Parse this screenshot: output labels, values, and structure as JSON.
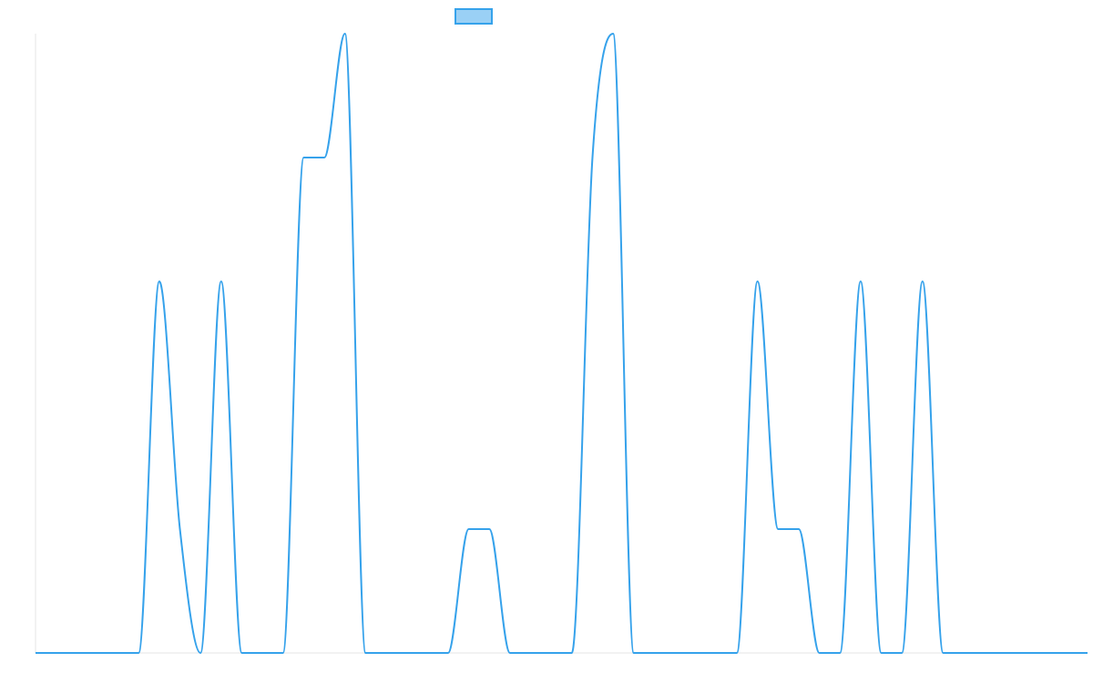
{
  "chart_data": {
    "type": "line",
    "title": "",
    "xlabel": "",
    "ylabel": "",
    "grid": false,
    "legend_position": "top-center",
    "x": [
      0,
      1,
      2,
      3,
      4,
      5,
      6,
      7,
      8,
      9,
      10,
      11,
      12,
      13,
      14,
      15,
      16,
      17,
      18,
      19,
      20,
      21,
      22,
      23,
      24,
      25,
      26,
      27,
      28,
      29,
      30,
      31,
      32,
      33,
      34,
      35,
      36,
      37,
      38,
      39,
      40,
      41,
      42,
      43,
      44,
      45,
      46,
      47,
      48,
      49,
      50,
      51
    ],
    "xlim": [
      0,
      51
    ],
    "ylim": [
      0,
      5
    ],
    "series": [
      {
        "name": "",
        "color": "#36a2eb",
        "fill": "#9ad0f5",
        "values": [
          0,
          0,
          0,
          0,
          0,
          0,
          3,
          1,
          0,
          3,
          0,
          0,
          0,
          4,
          4,
          5,
          0,
          0,
          0,
          0,
          0,
          1,
          1,
          0,
          0,
          0,
          0,
          4,
          5,
          0,
          0,
          0,
          0,
          0,
          0,
          3,
          1,
          1,
          0,
          0,
          3,
          0,
          0,
          3,
          0,
          0,
          0,
          0,
          0,
          0,
          0,
          0
        ]
      }
    ]
  }
}
